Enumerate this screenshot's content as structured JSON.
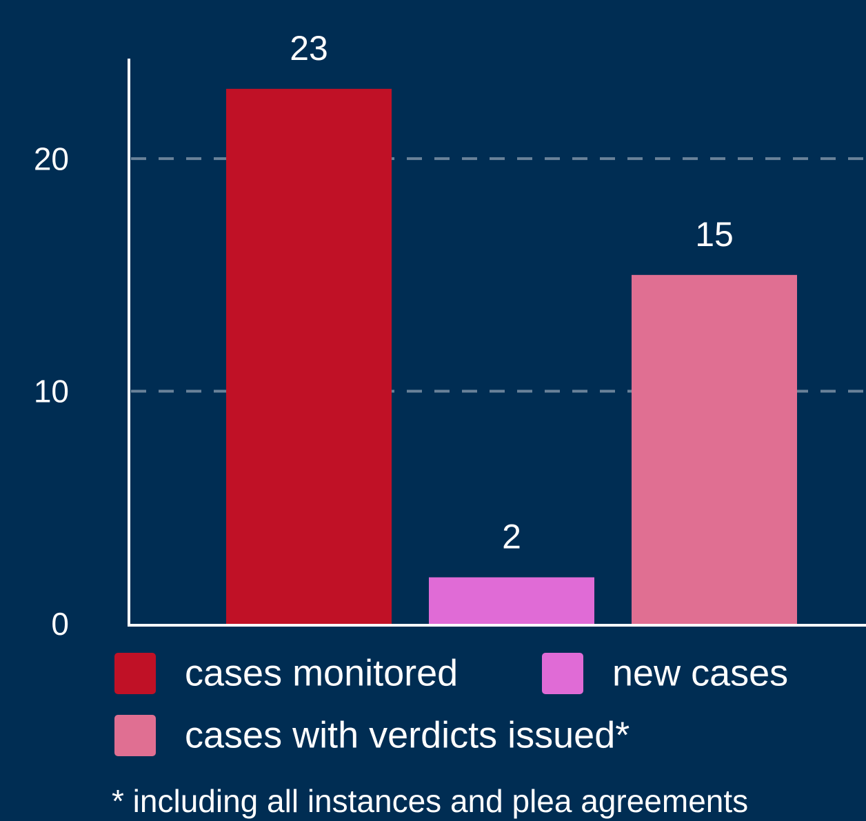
{
  "chart_data": {
    "type": "bar",
    "series": [
      {
        "name": "cases monitored",
        "color": "#c01126",
        "values": [
          23
        ]
      },
      {
        "name": "new cases",
        "color": "#e06bd6",
        "values": [
          2
        ]
      },
      {
        "name": "cases with verdicts issued*",
        "color": "#e06f92",
        "values": [
          15
        ]
      }
    ],
    "ylim": [
      0,
      24.3
    ],
    "yticks": [
      0,
      10,
      20
    ],
    "grid": true,
    "footnote": "* including all instances and plea agreements"
  }
}
